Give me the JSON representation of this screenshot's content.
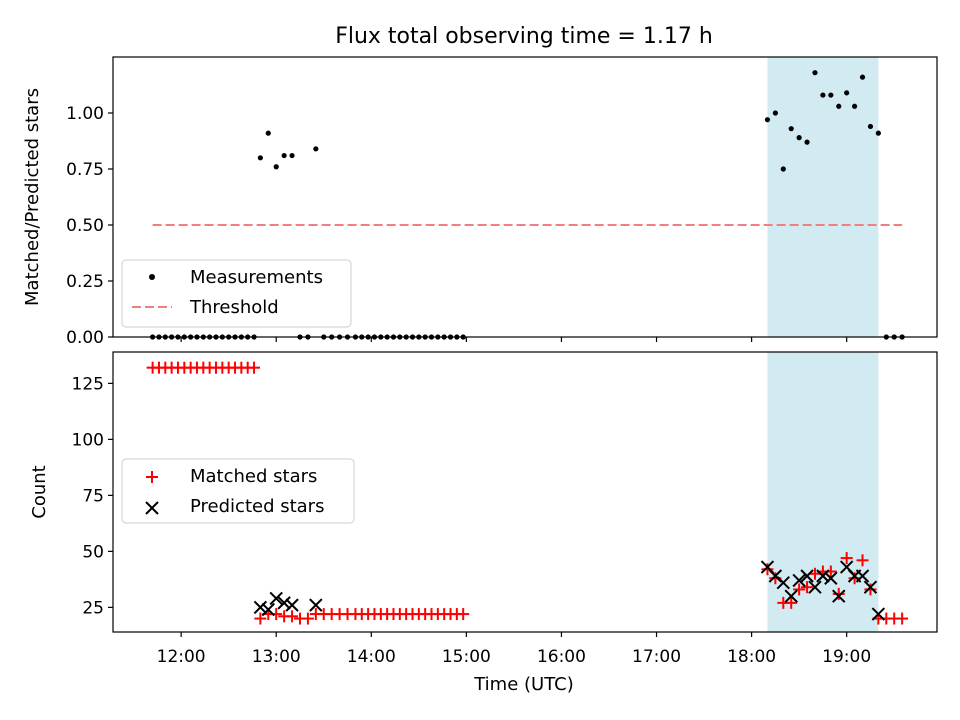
{
  "title": "Flux total observing time = 1.17 h",
  "chart_data": [
    {
      "type": "scatter",
      "ylabel": "Matched/Predicted stars",
      "xlabel": "",
      "xlim": [
        "11:17",
        "19:57"
      ],
      "ylim": [
        0,
        1.25
      ],
      "yticks": [
        0.0,
        0.25,
        0.5,
        0.75,
        1.0
      ],
      "ytick_labels": [
        "0.00",
        "0.25",
        "0.50",
        "0.75",
        "1.00"
      ],
      "shaded_span": {
        "x": [
          "18:10",
          "19:20"
        ],
        "color": "#add8e6"
      },
      "threshold": {
        "name": "Threshold",
        "y": 0.5,
        "x": [
          "11:42",
          "19:35"
        ],
        "color": "#f08080"
      },
      "legend": {
        "placement": "lower-left",
        "entries": [
          "Measurements",
          "Threshold"
        ]
      },
      "series": [
        {
          "name": "Measurements",
          "marker": "dot",
          "color": "#000000",
          "x": [
            "11:42",
            "11:46",
            "11:50",
            "11:54",
            "11:58",
            "12:02",
            "12:06",
            "12:10",
            "12:14",
            "12:18",
            "12:22",
            "12:26",
            "12:30",
            "12:34",
            "12:38",
            "12:42",
            "12:46",
            "12:50",
            "12:55",
            "13:00",
            "13:05",
            "13:10",
            "13:15",
            "13:20",
            "13:25",
            "13:30",
            "13:35",
            "13:40",
            "13:45",
            "13:50",
            "13:54",
            "13:58",
            "14:02",
            "14:06",
            "14:10",
            "14:14",
            "14:18",
            "14:22",
            "14:26",
            "14:30",
            "14:34",
            "14:38",
            "14:42",
            "14:46",
            "14:50",
            "14:54",
            "14:58",
            "18:10",
            "18:15",
            "18:20",
            "18:25",
            "18:30",
            "18:35",
            "18:40",
            "18:45",
            "18:50",
            "18:55",
            "19:00",
            "19:05",
            "19:10",
            "19:15",
            "19:20",
            "19:25",
            "19:30",
            "19:35"
          ],
          "y": [
            0,
            0,
            0,
            0,
            0,
            0,
            0,
            0,
            0,
            0,
            0,
            0,
            0,
            0,
            0,
            0,
            0,
            0.8,
            0.91,
            0.76,
            0.81,
            0.81,
            0,
            0,
            0.84,
            0,
            0,
            0,
            0,
            0,
            0,
            0,
            0,
            0,
            0,
            0,
            0,
            0,
            0,
            0,
            0,
            0,
            0,
            0,
            0,
            0,
            0,
            0.97,
            1.0,
            0.75,
            0.93,
            0.89,
            0.87,
            1.18,
            1.08,
            1.08,
            1.03,
            1.09,
            1.03,
            1.16,
            0.94,
            0.91,
            0,
            0,
            0
          ]
        }
      ]
    },
    {
      "type": "scatter",
      "ylabel": "Count",
      "xlabel": "Time (UTC)",
      "xlim": [
        "11:17",
        "19:57"
      ],
      "ylim": [
        14,
        139
      ],
      "yticks": [
        25,
        50,
        75,
        100,
        125
      ],
      "ytick_labels": [
        "25",
        "50",
        "75",
        "100",
        "125"
      ],
      "xticks": [
        "12:00",
        "13:00",
        "14:00",
        "15:00",
        "16:00",
        "17:00",
        "18:00",
        "19:00"
      ],
      "shaded_span": {
        "x": [
          "18:10",
          "19:20"
        ],
        "color": "#add8e6"
      },
      "legend": {
        "placement": "center-left",
        "entries": [
          "Matched stars",
          "Predicted stars"
        ]
      },
      "series": [
        {
          "name": "Matched stars",
          "marker": "plus",
          "color": "#ff0000",
          "x": [
            "11:42",
            "11:46",
            "11:50",
            "11:54",
            "11:58",
            "12:02",
            "12:06",
            "12:10",
            "12:14",
            "12:18",
            "12:22",
            "12:26",
            "12:30",
            "12:34",
            "12:38",
            "12:42",
            "12:46",
            "12:50",
            "12:55",
            "13:00",
            "13:05",
            "13:10",
            "13:15",
            "13:20",
            "13:25",
            "13:30",
            "13:35",
            "13:40",
            "13:45",
            "13:50",
            "13:54",
            "13:58",
            "14:02",
            "14:06",
            "14:10",
            "14:14",
            "14:18",
            "14:22",
            "14:26",
            "14:30",
            "14:34",
            "14:38",
            "14:42",
            "14:46",
            "14:50",
            "14:54",
            "14:58",
            "18:10",
            "18:15",
            "18:20",
            "18:25",
            "18:30",
            "18:35",
            "18:40",
            "18:45",
            "18:50",
            "18:55",
            "19:00",
            "19:05",
            "19:10",
            "19:15",
            "19:20",
            "19:25",
            "19:30",
            "19:35"
          ],
          "y": [
            132,
            132,
            132,
            132,
            132,
            132,
            132,
            132,
            132,
            132,
            132,
            132,
            132,
            132,
            132,
            132,
            132,
            20,
            22,
            22,
            21,
            21,
            20,
            20,
            22,
            22,
            22,
            22,
            22,
            22,
            22,
            22,
            22,
            22,
            22,
            22,
            22,
            22,
            22,
            22,
            22,
            22,
            22,
            22,
            22,
            22,
            22,
            42,
            38,
            27,
            27,
            33,
            34,
            40,
            41,
            41,
            31,
            47,
            38,
            46,
            33,
            20,
            20,
            20,
            20
          ]
        },
        {
          "name": "Predicted stars",
          "marker": "x",
          "color": "#000000",
          "x": [
            "12:50",
            "12:55",
            "13:00",
            "13:05",
            "13:10",
            "13:25",
            "18:10",
            "18:15",
            "18:20",
            "18:25",
            "18:30",
            "18:35",
            "18:40",
            "18:45",
            "18:50",
            "18:55",
            "19:00",
            "19:05",
            "19:10",
            "19:15",
            "19:20"
          ],
          "y": [
            25,
            24,
            29,
            27,
            26,
            26,
            43,
            39,
            36,
            30,
            37,
            39,
            34,
            39,
            38,
            30,
            43,
            39,
            39,
            34,
            22
          ]
        }
      ]
    }
  ]
}
